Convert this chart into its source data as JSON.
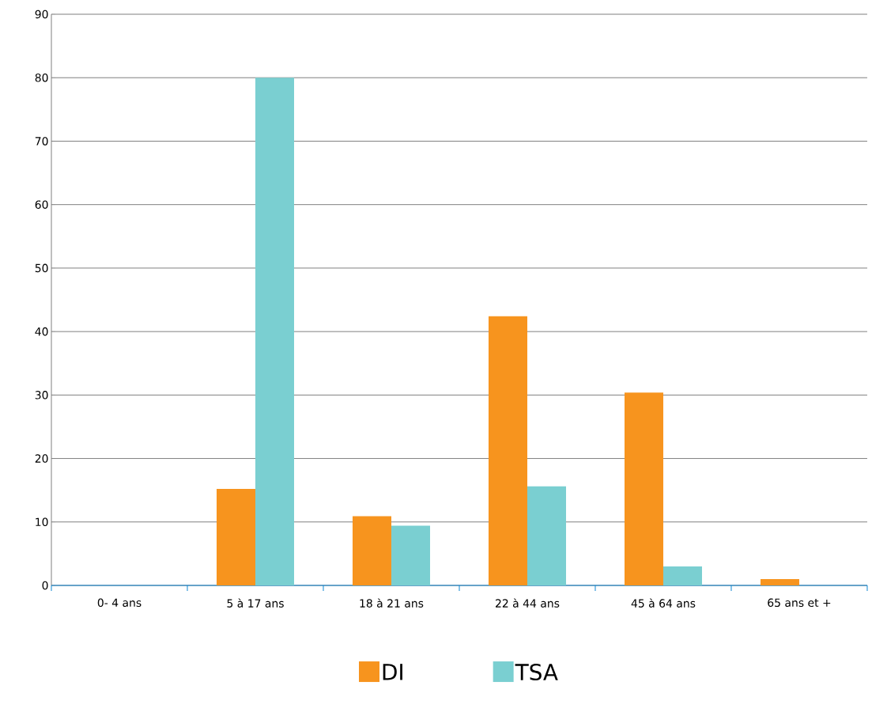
{
  "chart_data": {
    "type": "bar",
    "categories": [
      "0- 4 ans",
      "5 à 17 ans",
      "18 à 21 ans",
      "22 à 44 ans",
      "45 à 64 ans",
      "65 ans et +"
    ],
    "series": [
      {
        "name": "DI",
        "color": "#f7941e",
        "values": [
          0,
          15.2,
          10.9,
          42.4,
          30.4,
          1.0
        ]
      },
      {
        "name": "TSA",
        "color": "#7acfd1",
        "values": [
          0,
          80,
          9.4,
          15.6,
          3.0,
          0
        ]
      }
    ],
    "ylim": [
      0,
      90
    ],
    "yticks": [
      0,
      10,
      20,
      30,
      40,
      50,
      60,
      70,
      80,
      90
    ],
    "grid": "y",
    "legend": "bottom"
  }
}
